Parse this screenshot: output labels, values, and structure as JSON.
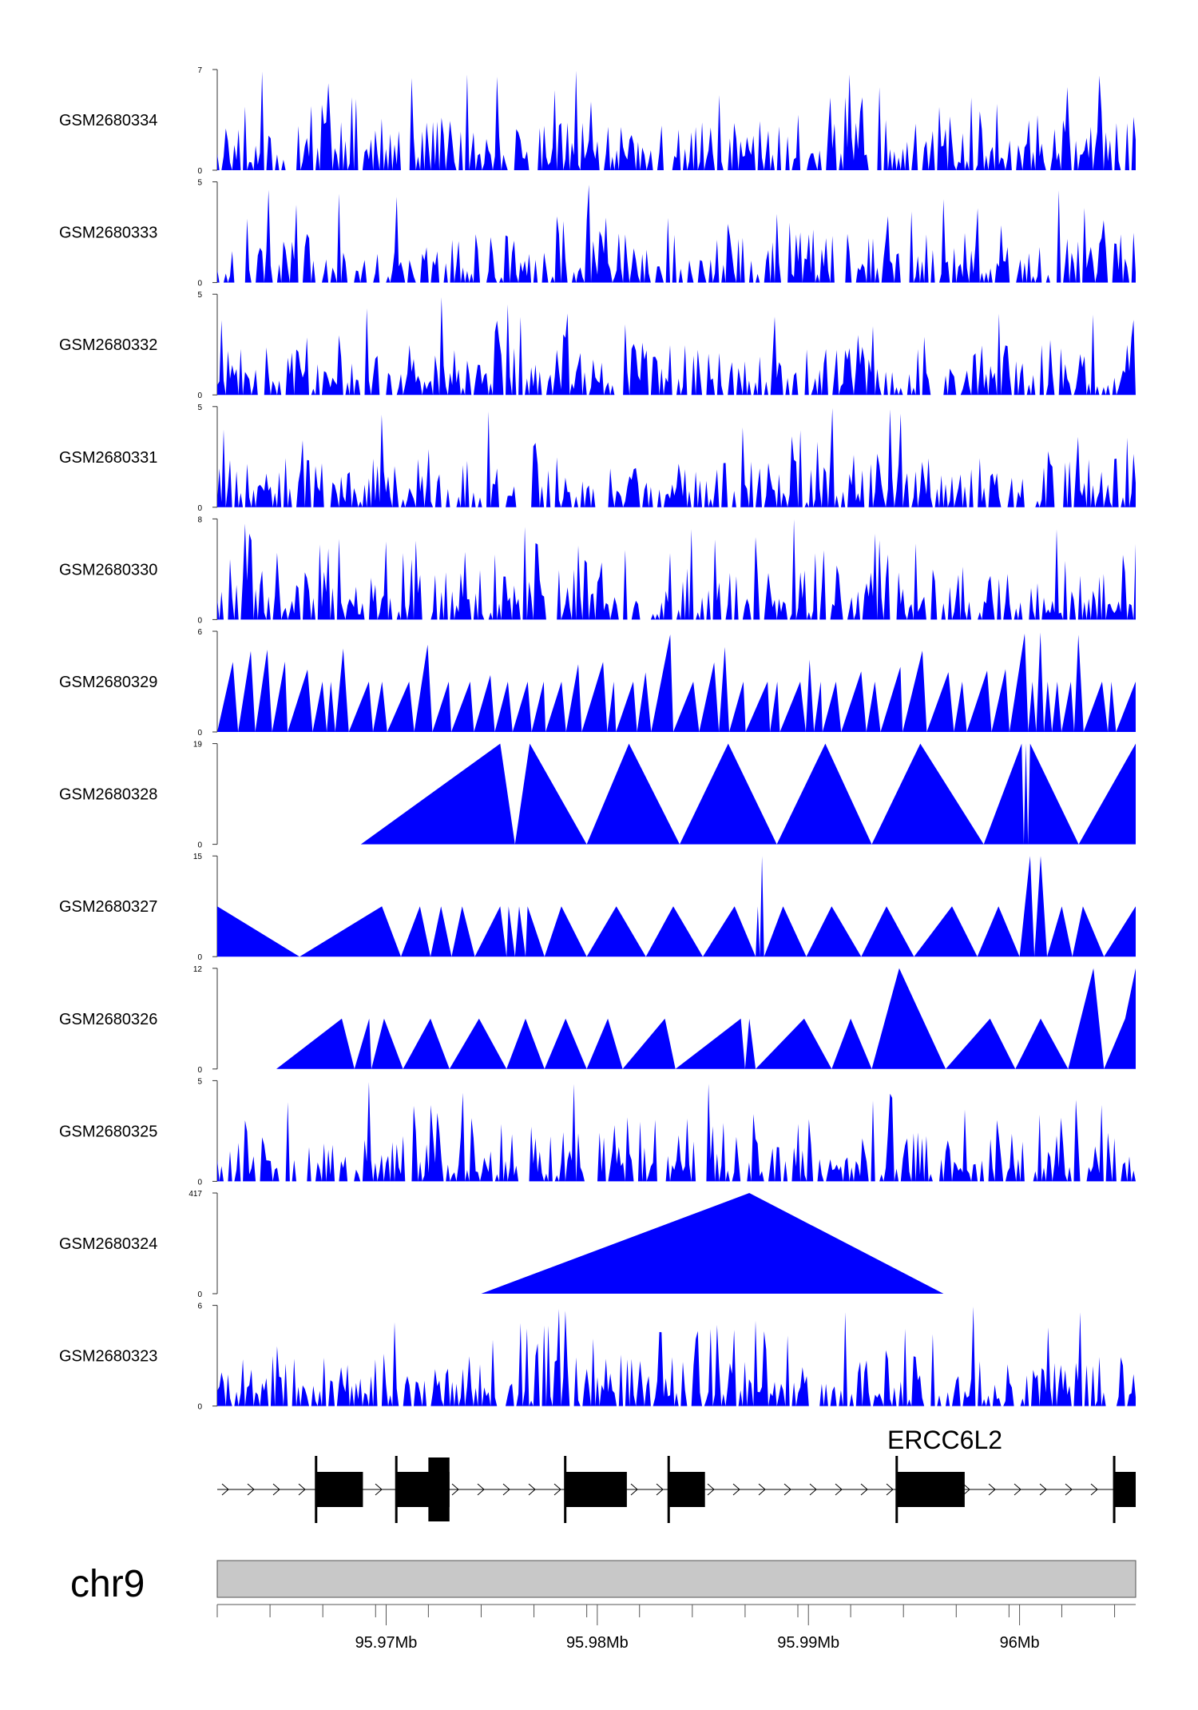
{
  "chart_data": {
    "type": "area",
    "chromosome": "chr9",
    "x_range_mb": [
      95.962,
      96.0055
    ],
    "axis_ticks": [
      {
        "pos": 95.97,
        "label": "95.97Mb"
      },
      {
        "pos": 95.98,
        "label": "95.98Mb"
      },
      {
        "pos": 95.99,
        "label": "95.99Mb"
      },
      {
        "pos": 96.0,
        "label": "96Mb"
      }
    ],
    "gene": {
      "name": "ERCC6L2",
      "strand": "+",
      "start": 95.962,
      "end": 96.0055,
      "exons": [
        {
          "start": 95.9667,
          "end": 95.9689
        },
        {
          "start": 95.9705,
          "end": 95.973
        },
        {
          "start": 95.9785,
          "end": 95.9814
        },
        {
          "start": 95.9834,
          "end": 95.9851
        },
        {
          "start": 95.9942,
          "end": 95.9974
        },
        {
          "start": 96.0045,
          "end": 96.0055
        }
      ],
      "utr_regions": [
        {
          "start": 95.972,
          "end": 95.973
        }
      ]
    },
    "fill_color": "#0000ff",
    "series": [
      {
        "name": "GSM2680334",
        "ymin": 0,
        "ymax": 7,
        "style": "dense"
      },
      {
        "name": "GSM2680333",
        "ymin": 0,
        "ymax": 5,
        "style": "dense"
      },
      {
        "name": "GSM2680332",
        "ymin": 0,
        "ymax": 5,
        "style": "dense"
      },
      {
        "name": "GSM2680331",
        "ymin": 0,
        "ymax": 5,
        "style": "dense"
      },
      {
        "name": "GSM2680330",
        "ymin": 0,
        "ymax": 8,
        "style": "dense"
      },
      {
        "name": "GSM2680329",
        "ymin": 0,
        "ymax": 6,
        "style": "medium"
      },
      {
        "name": "GSM2680328",
        "ymin": 0,
        "ymax": 19,
        "style": "points",
        "points": [
          [
            95.9688,
            0
          ],
          [
            95.9754,
            19
          ],
          [
            95.9761,
            0
          ],
          [
            95.9768,
            19
          ],
          [
            95.9795,
            0
          ],
          [
            95.9815,
            19
          ],
          [
            95.9839,
            0
          ],
          [
            95.9862,
            19
          ],
          [
            95.9885,
            0
          ],
          [
            95.9908,
            19
          ],
          [
            95.993,
            0
          ],
          [
            95.9953,
            19
          ],
          [
            95.9983,
            0
          ],
          [
            96.0001,
            19
          ],
          [
            96.0002,
            0
          ],
          [
            96.0003,
            19
          ],
          [
            96.0004,
            0
          ],
          [
            96.0005,
            19
          ],
          [
            96.0028,
            0
          ],
          [
            96.0055,
            19
          ],
          [
            96.0055,
            0
          ]
        ]
      },
      {
        "name": "GSM2680327",
        "ymin": 0,
        "ymax": 15,
        "style": "points",
        "points": [
          [
            95.962,
            0
          ],
          [
            95.962,
            7.5
          ],
          [
            95.9659,
            0
          ],
          [
            95.9698,
            7.5
          ],
          [
            95.9707,
            0
          ],
          [
            95.9716,
            7.5
          ],
          [
            95.9721,
            0
          ],
          [
            95.9726,
            7.5
          ],
          [
            95.9731,
            0
          ],
          [
            95.9736,
            7.5
          ],
          [
            95.9742,
            0
          ],
          [
            95.9754,
            7.5
          ],
          [
            95.9757,
            0
          ],
          [
            95.9758,
            7.5
          ],
          [
            95.9761,
            0
          ],
          [
            95.9763,
            7.5
          ],
          [
            95.9766,
            0
          ],
          [
            95.9767,
            7.5
          ],
          [
            95.9775,
            0
          ],
          [
            95.9783,
            7.5
          ],
          [
            95.9795,
            0
          ],
          [
            95.9809,
            7.5
          ],
          [
            95.9823,
            0
          ],
          [
            95.9836,
            7.5
          ],
          [
            95.985,
            0
          ],
          [
            95.9865,
            7.5
          ],
          [
            95.9875,
            0
          ],
          [
            95.9876,
            7.5
          ],
          [
            95.9877,
            0
          ],
          [
            95.9878,
            15
          ],
          [
            95.9879,
            0
          ],
          [
            95.9888,
            7.5
          ],
          [
            95.9899,
            0
          ],
          [
            95.9911,
            7.5
          ],
          [
            95.9925,
            0
          ],
          [
            95.9937,
            7.5
          ],
          [
            95.995,
            0
          ],
          [
            95.9968,
            7.5
          ],
          [
            95.998,
            0
          ],
          [
            95.999,
            7.5
          ],
          [
            96.0,
            0
          ],
          [
            96.0005,
            15
          ],
          [
            96.0007,
            0
          ],
          [
            96.001,
            15
          ],
          [
            96.0013,
            0
          ],
          [
            96.002,
            7.5
          ],
          [
            96.0025,
            0
          ],
          [
            96.003,
            7.5
          ],
          [
            96.004,
            0
          ],
          [
            96.0055,
            7.5
          ],
          [
            96.0055,
            0
          ]
        ]
      },
      {
        "name": "GSM2680326",
        "ymin": 0,
        "ymax": 12,
        "style": "points",
        "points": [
          [
            95.9648,
            0
          ],
          [
            95.9679,
            6
          ],
          [
            95.9685,
            0
          ],
          [
            95.9692,
            6
          ],
          [
            95.9693,
            0
          ],
          [
            95.9699,
            6
          ],
          [
            95.9708,
            0
          ],
          [
            95.9721,
            6
          ],
          [
            95.973,
            0
          ],
          [
            95.9744,
            6
          ],
          [
            95.9757,
            0
          ],
          [
            95.9766,
            6
          ],
          [
            95.9775,
            0
          ],
          [
            95.9785,
            6
          ],
          [
            95.9795,
            0
          ],
          [
            95.9805,
            6
          ],
          [
            95.9812,
            0
          ],
          [
            95.9832,
            6
          ],
          [
            95.9837,
            0
          ],
          [
            95.9868,
            6
          ],
          [
            95.987,
            0
          ],
          [
            95.9872,
            6
          ],
          [
            95.9875,
            0
          ],
          [
            95.9898,
            6
          ],
          [
            95.9911,
            0
          ],
          [
            95.992,
            6
          ],
          [
            95.993,
            0
          ],
          [
            95.9943,
            12
          ],
          [
            95.9965,
            0
          ],
          [
            95.9986,
            6
          ],
          [
            95.9998,
            0
          ],
          [
            96.001,
            6
          ],
          [
            96.0023,
            0
          ],
          [
            96.0035,
            12
          ],
          [
            96.004,
            0
          ],
          [
            96.005,
            6
          ],
          [
            96.0055,
            12
          ],
          [
            96.0055,
            0
          ]
        ]
      },
      {
        "name": "GSM2680325",
        "ymin": 0,
        "ymax": 5,
        "style": "dense"
      },
      {
        "name": "GSM2680324",
        "ymin": 0,
        "ymax": 417,
        "style": "points",
        "points": [
          [
            95.9745,
            0
          ],
          [
            95.9872,
            417
          ],
          [
            95.9964,
            0
          ]
        ]
      },
      {
        "name": "GSM2680323",
        "ymin": 0,
        "ymax": 6,
        "style": "dense"
      }
    ]
  }
}
